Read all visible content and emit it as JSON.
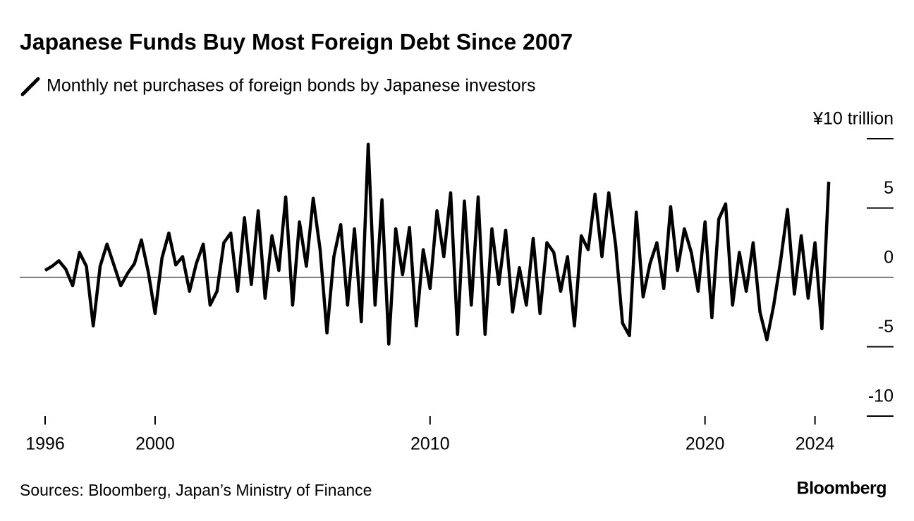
{
  "chart_data": {
    "type": "line",
    "title": "Japanese Funds Buy Most Foreign Debt Since 2007",
    "source": "Sources: Bloomberg, Japan’s Ministry of Finance",
    "brand": "Bloomberg",
    "x": [
      1996,
      1996.25,
      1996.5,
      1996.75,
      1997,
      1997.25,
      1997.5,
      1997.75,
      1998,
      1998.25,
      1998.5,
      1998.75,
      1999,
      1999.25,
      1999.5,
      1999.75,
      2000,
      2000.25,
      2000.5,
      2000.75,
      2001,
      2001.25,
      2001.5,
      2001.75,
      2002,
      2002.25,
      2002.5,
      2002.75,
      2003,
      2003.25,
      2003.5,
      2003.75,
      2004,
      2004.25,
      2004.5,
      2004.75,
      2005,
      2005.25,
      2005.5,
      2005.75,
      2006,
      2006.25,
      2006.5,
      2006.75,
      2007,
      2007.25,
      2007.5,
      2007.75,
      2008,
      2008.25,
      2008.5,
      2008.75,
      2009,
      2009.25,
      2009.5,
      2009.75,
      2010,
      2010.25,
      2010.5,
      2010.75,
      2011,
      2011.25,
      2011.5,
      2011.75,
      2012,
      2012.25,
      2012.5,
      2012.75,
      2013,
      2013.25,
      2013.5,
      2013.75,
      2014,
      2014.25,
      2014.5,
      2014.75,
      2015,
      2015.25,
      2015.5,
      2015.75,
      2016,
      2016.25,
      2016.5,
      2016.75,
      2017,
      2017.25,
      2017.5,
      2017.75,
      2018,
      2018.25,
      2018.5,
      2018.75,
      2019,
      2019.25,
      2019.5,
      2019.75,
      2020,
      2020.25,
      2020.5,
      2020.75,
      2021,
      2021.25,
      2021.5,
      2021.75,
      2022,
      2022.25,
      2022.5,
      2022.75,
      2023,
      2023.25,
      2023.5,
      2023.75,
      2024,
      2024.25,
      2024.5
    ],
    "series": [
      {
        "name": "Monthly net purchases of foreign bonds by Japanese investors",
        "color": "#000000",
        "values": [
          0.5,
          0.8,
          1.2,
          0.6,
          -0.6,
          1.8,
          0.8,
          -3.5,
          0.8,
          2.4,
          0.9,
          -0.6,
          0.3,
          1.0,
          2.7,
          0.4,
          -2.6,
          1.4,
          3.2,
          0.9,
          1.5,
          -1.0,
          1.0,
          2.4,
          -2.0,
          -1.0,
          2.5,
          3.2,
          -1.0,
          4.3,
          -0.5,
          4.8,
          -1.5,
          3.0,
          0.5,
          5.8,
          -2.0,
          4.0,
          0.8,
          5.7,
          2.0,
          -4.0,
          1.5,
          3.8,
          -2.0,
          3.5,
          -3.2,
          9.6,
          -2.0,
          5.6,
          -4.8,
          3.5,
          0.2,
          3.6,
          -3.5,
          2.0,
          -0.8,
          4.8,
          1.5,
          6.1,
          -4.1,
          5.5,
          -2.0,
          5.8,
          -4.1,
          3.5,
          -0.5,
          3.4,
          -2.5,
          0.7,
          -2.0,
          2.8,
          -2.6,
          2.5,
          1.8,
          -1.0,
          1.5,
          -3.5,
          3.0,
          2.0,
          6.0,
          1.5,
          6.1,
          2.3,
          -3.3,
          -4.2,
          4.7,
          -1.4,
          1.0,
          2.5,
          -0.8,
          5.1,
          0.5,
          3.5,
          1.8,
          -1.0,
          4.0,
          -2.9,
          4.2,
          5.3,
          -2.0,
          1.8,
          -1.0,
          2.5,
          -2.5,
          -4.5,
          -2.0,
          1.2,
          4.9,
          -1.2,
          3.0,
          -1.5,
          2.5,
          -3.7,
          6.9
        ]
      }
    ],
    "xlim": [
      1996,
      2024.6
    ],
    "xticks": [
      1996,
      2000,
      2010,
      2020,
      2024
    ],
    "ylim": [
      -10,
      10
    ],
    "yticks": [
      {
        "value": 10,
        "label": "¥10 trillion"
      },
      5,
      0,
      -5,
      -10
    ]
  }
}
